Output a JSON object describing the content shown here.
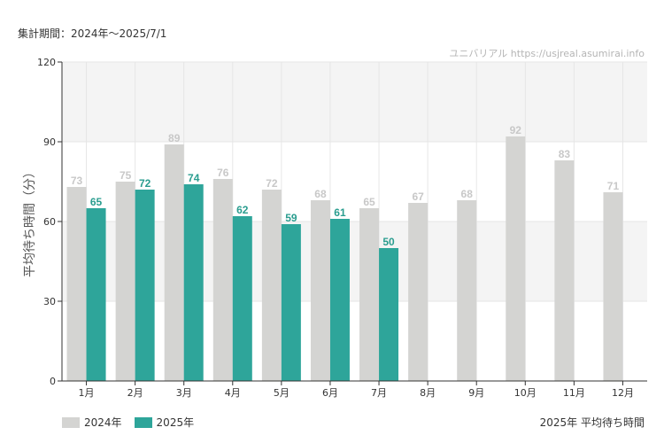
{
  "header": {
    "period": "集計期間：2024年～2025/7/1",
    "source": "ユニバリアル  https://usjreal.asumirai.info"
  },
  "footer": {
    "title": "2025年 平均待ち時間"
  },
  "legend": [
    {
      "label": "2024年",
      "color": "#d4d4d2"
    },
    {
      "label": "2025年",
      "color": "#2ea59a"
    }
  ],
  "chart_data": {
    "type": "bar",
    "title": "",
    "xlabel": "",
    "ylabel": "平均待ち時間（分）",
    "ylim": [
      0,
      120
    ],
    "yticks": [
      0,
      30,
      60,
      90,
      120
    ],
    "grid": true,
    "legend_position": "bottom-left",
    "categories": [
      "1月",
      "2月",
      "3月",
      "4月",
      "5月",
      "6月",
      "7月",
      "8月",
      "9月",
      "10月",
      "11月",
      "12月"
    ],
    "series": [
      {
        "name": "2024年",
        "color": "#d4d4d2",
        "label_color": "#c8c8c8",
        "values": [
          73,
          75,
          89,
          76,
          72,
          68,
          65,
          67,
          68,
          92,
          83,
          71
        ]
      },
      {
        "name": "2025年",
        "color": "#2ea59a",
        "label_color": "#2a9d8f",
        "values": [
          65,
          72,
          74,
          62,
          59,
          61,
          50,
          null,
          null,
          null,
          null,
          null
        ]
      }
    ]
  }
}
